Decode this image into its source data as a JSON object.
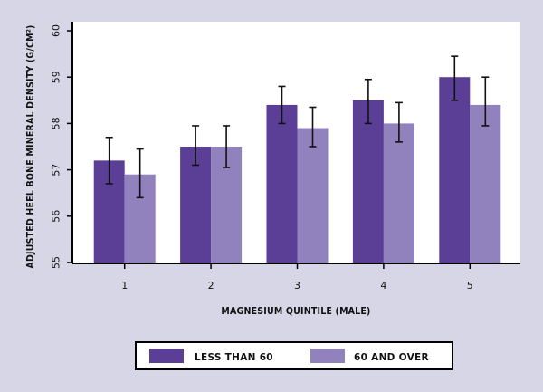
{
  "chart_data": {
    "type": "bar",
    "title": "",
    "xlabel": "MAGNESIUM QUINTILE (MALE)",
    "ylabel": "ADJUSTED HEEL BONE MINERAL DENSITY (G/CM²)",
    "categories": [
      "1",
      "2",
      "3",
      "4",
      "5"
    ],
    "ylim": [
      55,
      60
    ],
    "yticks": [
      55,
      56,
      57,
      58,
      59,
      60
    ],
    "grid": false,
    "legend_position": "bottom",
    "series": [
      {
        "name": "LESS THAN 60",
        "color": "#5b3f97",
        "values": [
          57.2,
          57.5,
          58.4,
          58.5,
          59.0
        ],
        "error_low": [
          56.7,
          57.1,
          58.0,
          58.0,
          58.5
        ],
        "error_high": [
          57.7,
          57.95,
          58.8,
          58.95,
          59.45
        ]
      },
      {
        "name": "60 AND OVER",
        "color": "#9181bd",
        "values": [
          56.9,
          57.5,
          57.9,
          58.0,
          58.4
        ],
        "error_low": [
          56.4,
          57.05,
          57.5,
          57.6,
          57.95
        ],
        "error_high": [
          57.45,
          57.95,
          58.35,
          58.45,
          59.0
        ]
      }
    ]
  }
}
